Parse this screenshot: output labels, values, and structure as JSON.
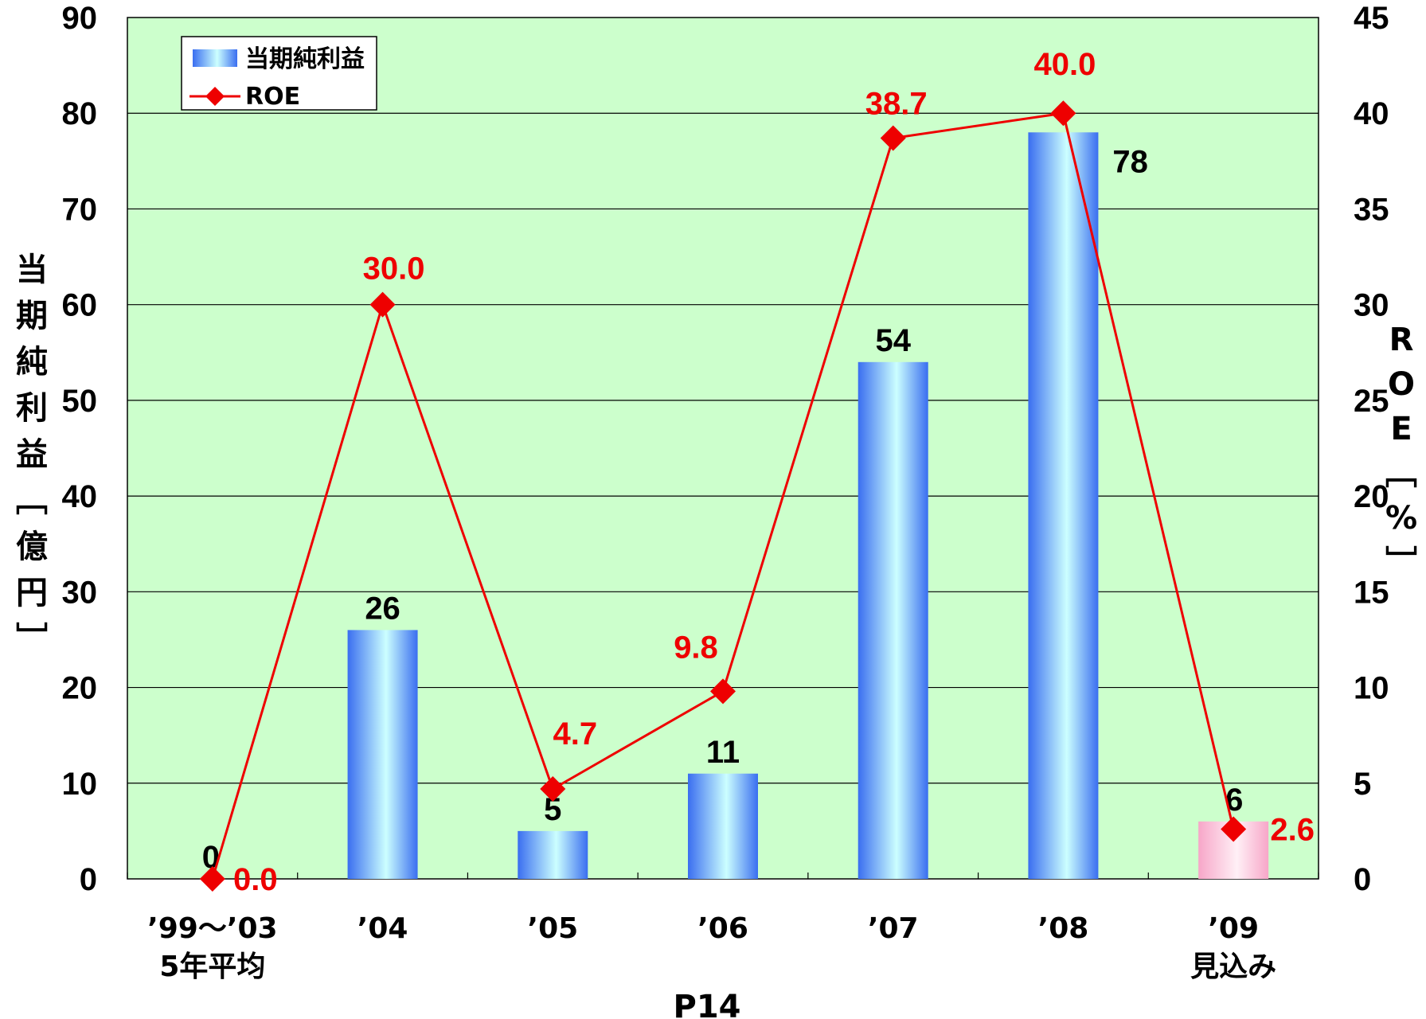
{
  "chart_data": {
    "type": "bar",
    "categories": [
      "’99～’03\n5年平均",
      "’04",
      "’05",
      "’06",
      "’07",
      "’08",
      "’09\n見込み"
    ],
    "series": [
      {
        "name": "当期純利益",
        "kind": "bar",
        "axis": "left",
        "values": [
          0,
          26,
          5,
          11,
          54,
          78,
          6
        ],
        "labels": [
          "0",
          "26",
          "5",
          "11",
          "54",
          "78",
          "6"
        ],
        "colors": [
          "#3a6ef0",
          "#3a6ef0",
          "#3a6ef0",
          "#3a6ef0",
          "#3a6ef0",
          "#3a6ef0",
          "#f7a6c8"
        ]
      },
      {
        "name": "ROE",
        "kind": "line",
        "axis": "right",
        "values": [
          0.0,
          30.0,
          4.7,
          9.8,
          38.7,
          40.0,
          2.6
        ],
        "labels": [
          "0.0",
          "30.0",
          "4.7",
          "9.8",
          "38.7",
          "40.0",
          "2.6"
        ],
        "color": "#ee0000"
      }
    ],
    "ylabel": "当期純利益［億円］",
    "ylim": [
      0,
      90
    ],
    "yticks": [
      "0",
      "10",
      "20",
      "30",
      "40",
      "50",
      "60",
      "70",
      "80",
      "90"
    ],
    "y2label": "ROE［%］",
    "y2lim": [
      0,
      45
    ],
    "y2ticks": [
      "0",
      "5",
      "10",
      "15",
      "20",
      "25",
      "30",
      "35",
      "40",
      "45"
    ],
    "grid": true,
    "plot_background": "#ccffcc",
    "legend_position": "top-left"
  },
  "footer": "P14"
}
